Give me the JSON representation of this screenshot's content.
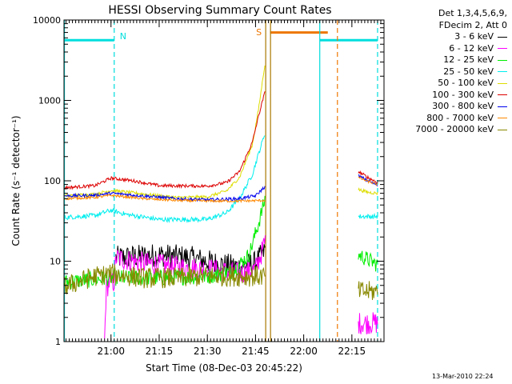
{
  "chart_data": {
    "type": "line",
    "title": "HESSI Observing Summary Count Rates",
    "xlabel": "Start Time (08-Dec-03 20:45:22)",
    "ylabel": "Count Rate (s⁻¹ detector⁻¹)",
    "xlim": [
      "20:45:22",
      "22:25:00"
    ],
    "x_ticks": [
      "21:00",
      "21:15",
      "21:30",
      "21:45",
      "22:00",
      "22:15"
    ],
    "y_scale": "log",
    "ylim": [
      1,
      10000
    ],
    "y_ticks": [
      "1",
      "10",
      "100",
      "1000",
      "10000"
    ],
    "legend": {
      "position": "right",
      "header": [
        "Det 1,3,4,5,6,9,",
        "FDecim 2, Att 0"
      ],
      "entries": [
        {
          "label": "3 - 6 keV",
          "color": "#000000"
        },
        {
          "label": "6 - 12 keV",
          "color": "#ff00ff"
        },
        {
          "label": "12 - 25 keV",
          "color": "#00ee00"
        },
        {
          "label": "25 - 50 keV",
          "color": "#00eeee"
        },
        {
          "label": "50 - 100 keV",
          "color": "#dddd00"
        },
        {
          "label": "100 - 300 keV",
          "color": "#dd0000"
        },
        {
          "label": "300 - 800 keV",
          "color": "#0000ee"
        },
        {
          "label": "800 - 7000 keV",
          "color": "#ff8800"
        },
        {
          "label": "7000 - 20000 keV",
          "color": "#888800"
        }
      ]
    },
    "annotations": [
      {
        "label": "N",
        "color": "#00dddd"
      },
      {
        "label": "S",
        "color": "#ee7700"
      }
    ],
    "orbit_markers": {
      "night": [
        [
          "20:45:22",
          "21:01:00"
        ],
        [
          "22:05:00",
          "22:23:00"
        ]
      ],
      "saa": [
        [
          "21:49:30",
          "22:07:30"
        ]
      ],
      "vertical_lines": [
        {
          "time": "20:45:30",
          "color": "#00dddd",
          "style": "solid"
        },
        {
          "time": "21:01:00",
          "color": "#00dddd",
          "style": "dashed"
        },
        {
          "time": "21:48:10",
          "color": "#aa7700",
          "style": "solid"
        },
        {
          "time": "21:49:40",
          "color": "#aa7700",
          "style": "solid"
        },
        {
          "time": "22:05:00",
          "color": "#00dddd",
          "style": "solid"
        },
        {
          "time": "22:10:30",
          "color": "#ee7700",
          "style": "dashed"
        },
        {
          "time": "22:23:00",
          "color": "#00dddd",
          "style": "dashed"
        }
      ]
    },
    "series": [
      {
        "name": "3 - 6 keV",
        "color": "#000000",
        "noise": 0.15,
        "segments": [
          [
            [
              "21:01:30",
              11
            ],
            [
              "21:15",
              12
            ],
            [
              "21:25",
              11
            ],
            [
              "21:35",
              9
            ],
            [
              "21:40",
              8.5
            ],
            [
              "21:45",
              9.5
            ],
            [
              "21:47",
              12
            ],
            [
              "21:48",
              14
            ]
          ]
        ]
      },
      {
        "name": "6 - 12 keV",
        "color": "#ff00ff",
        "noise": 0.14,
        "segments": [
          [
            [
              "20:58:00",
              1
            ],
            [
              "20:58:30",
              4.5
            ],
            [
              "20:59:30",
              5.5
            ],
            [
              "21:01:00",
              5.5
            ],
            [
              "21:01:30",
              11
            ],
            [
              "21:10",
              9.5
            ],
            [
              "21:20",
              8.5
            ],
            [
              "21:30",
              8
            ],
            [
              "21:40",
              7
            ],
            [
              "21:45",
              8
            ],
            [
              "21:47",
              13
            ],
            [
              "21:48",
              18
            ]
          ],
          [
            [
              "22:17:00",
              1.7
            ],
            [
              "22:20:00",
              1.7
            ],
            [
              "22:23:00",
              1.7
            ]
          ]
        ]
      },
      {
        "name": "12 - 25 keV",
        "color": "#00ee00",
        "noise": 0.1,
        "segments": [
          [
            [
              "20:45:30",
              5.5
            ],
            [
              "21:00",
              6.2
            ],
            [
              "21:15",
              6.2
            ],
            [
              "21:30",
              6.5
            ],
            [
              "21:38",
              7.5
            ],
            [
              "21:43",
              12
            ],
            [
              "21:46",
              30
            ],
            [
              "21:48",
              60
            ]
          ],
          [
            [
              "22:17:00",
              12
            ],
            [
              "22:20:00",
              10.5
            ],
            [
              "22:23:00",
              9
            ]
          ]
        ]
      },
      {
        "name": "25 - 50 keV",
        "color": "#00eeee",
        "noise": 0.03,
        "segments": [
          [
            [
              "20:45:30",
              35
            ],
            [
              "20:55",
              37
            ],
            [
              "21:00",
              43
            ],
            [
              "21:05",
              38
            ],
            [
              "21:15",
              33
            ],
            [
              "21:30",
              33
            ],
            [
              "21:36",
              40
            ],
            [
              "21:40",
              60
            ],
            [
              "21:44",
              120
            ],
            [
              "21:46",
              220
            ],
            [
              "21:48",
              400
            ]
          ],
          [
            [
              "22:17:00",
              36
            ],
            [
              "22:20:00",
              36
            ],
            [
              "22:23:00",
              36
            ]
          ]
        ]
      },
      {
        "name": "50 - 100 keV",
        "color": "#dddd00",
        "noise": 0.02,
        "segments": [
          [
            [
              "20:45:30",
              65
            ],
            [
              "20:55",
              68
            ],
            [
              "21:00",
              76
            ],
            [
              "21:08",
              70
            ],
            [
              "21:20",
              62
            ],
            [
              "21:30",
              63
            ],
            [
              "21:36",
              75
            ],
            [
              "21:40",
              110
            ],
            [
              "21:44",
              280
            ],
            [
              "21:46",
              800
            ],
            [
              "21:48",
              3000
            ]
          ],
          [
            [
              "22:17:00",
              78
            ],
            [
              "22:20:00",
              72
            ],
            [
              "22:23:00",
              70
            ]
          ]
        ]
      },
      {
        "name": "100 - 300 keV",
        "color": "#dd0000",
        "noise": 0.02,
        "segments": [
          [
            [
              "20:45:30",
              82
            ],
            [
              "20:55",
              87
            ],
            [
              "21:00",
              108
            ],
            [
              "21:07",
              100
            ],
            [
              "21:15",
              87
            ],
            [
              "21:30",
              86
            ],
            [
              "21:36",
              95
            ],
            [
              "21:40",
              130
            ],
            [
              "21:44",
              300
            ],
            [
              "21:46",
              650
            ],
            [
              "21:48",
              1300
            ]
          ],
          [
            [
              "22:17:00",
              130
            ],
            [
              "22:20:00",
              110
            ],
            [
              "22:23:00",
              95
            ]
          ]
        ]
      },
      {
        "name": "300 - 800 keV",
        "color": "#0000ee",
        "noise": 0.02,
        "segments": [
          [
            [
              "20:45:30",
              65
            ],
            [
              "20:55",
              66
            ],
            [
              "21:00",
              70
            ],
            [
              "21:10",
              65
            ],
            [
              "21:20",
              60
            ],
            [
              "21:30",
              58
            ],
            [
              "21:40",
              60
            ],
            [
              "21:45",
              65
            ],
            [
              "21:48",
              85
            ]
          ],
          [
            [
              "22:17:00",
              115
            ],
            [
              "22:20:00",
              100
            ],
            [
              "22:23:00",
              88
            ]
          ]
        ]
      },
      {
        "name": "800 - 7000 keV",
        "color": "#ff8800",
        "noise": 0.015,
        "segments": [
          [
            [
              "20:45:30",
              60
            ],
            [
              "20:55",
              62
            ],
            [
              "21:00",
              66
            ],
            [
              "21:10",
              60
            ],
            [
              "21:20",
              57
            ],
            [
              "21:30",
              56
            ],
            [
              "21:40",
              56
            ],
            [
              "21:48",
              57
            ]
          ],
          [
            [
              "22:17:00",
              110
            ],
            [
              "22:20:00",
              98
            ],
            [
              "22:23:00",
              90
            ]
          ]
        ]
      },
      {
        "name": "7000 - 20000 keV",
        "color": "#888800",
        "noise": 0.13,
        "segments": [
          [
            [
              "20:45:30",
              4.8
            ],
            [
              "20:55",
              6.5
            ],
            [
              "21:00",
              7
            ],
            [
              "21:10",
              6.2
            ],
            [
              "21:20",
              6.2
            ],
            [
              "21:30",
              6.5
            ],
            [
              "21:40",
              6.5
            ],
            [
              "21:48",
              6.5
            ]
          ],
          [
            [
              "22:17:00",
              4.2
            ],
            [
              "22:20:00",
              4.2
            ],
            [
              "22:23:00",
              4.2
            ]
          ]
        ]
      }
    ]
  },
  "footer": {
    "timestamp": "13-Mar-2010 22:24"
  }
}
